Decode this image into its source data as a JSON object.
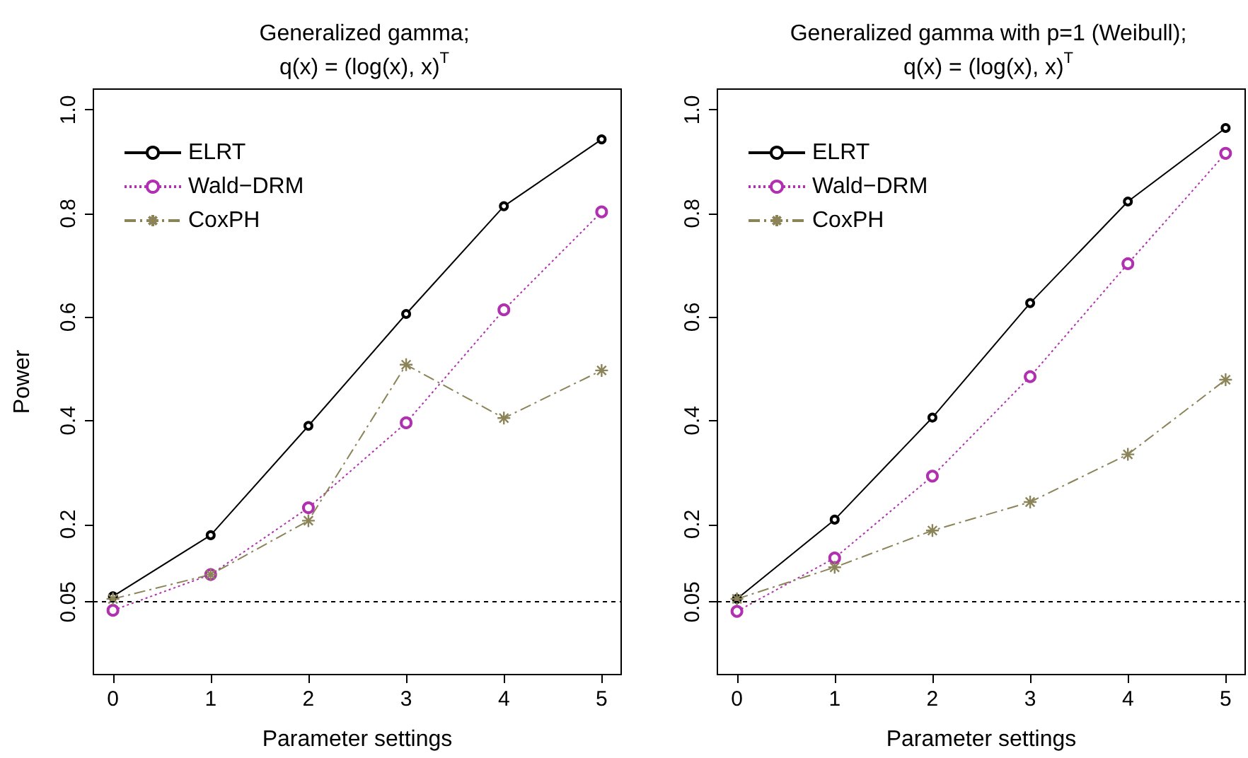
{
  "chart_data": [
    {
      "type": "line",
      "title": "Generalized gamma;",
      "subtitle": "q(x) = (log(x), x)$^{T}$",
      "xlabel": "Parameter settings",
      "ylabel": "Power",
      "x": [
        0,
        1,
        2,
        3,
        4,
        5
      ],
      "xlim": [
        -0.2,
        5.2
      ],
      "xticks": [
        0,
        1,
        2,
        3,
        4,
        5
      ],
      "ylim": [
        -0.09,
        1.04
      ],
      "yticks": [
        0.05,
        0.2,
        0.4,
        0.6,
        0.8,
        {
          "value": 1,
          "label": "1.0"
        }
      ],
      "grid": false,
      "legend": "top left",
      "ref_lines": [
        {
          "axis": "y",
          "value": 0.05,
          "label": null,
          "color": "#000000",
          "line_style": "dashed"
        }
      ],
      "series": [
        {
          "name": "ELRT",
          "color": "#000000",
          "marker": "circle",
          "line_style": "solid",
          "values": [
            0.061,
            0.179,
            0.39,
            0.606,
            0.814,
            0.943
          ]
        },
        {
          "name": "Wald−DRM",
          "color": "#b030b0",
          "marker": "circle",
          "line_style": "dotted",
          "values": [
            0.034,
            0.103,
            0.232,
            0.396,
            0.614,
            0.803
          ]
        },
        {
          "name": "CoxPH",
          "color": "#8b8458",
          "marker": "cross",
          "line_style": "dashed",
          "values": [
            0.056,
            0.103,
            0.207,
            0.508,
            0.405,
            0.497
          ]
        }
      ]
    },
    {
      "type": "line",
      "title": "Generalized gamma with p=1 (Weibull);",
      "subtitle": "q(x) = (log(x), x)$^{T}$",
      "xlabel": "Parameter settings",
      "x": [
        0,
        1,
        2,
        3,
        4,
        5
      ],
      "xlim": [
        -0.2,
        5.2
      ],
      "xticks": [
        0,
        1,
        2,
        3,
        4,
        5
      ],
      "ylim": [
        -0.09,
        1.04
      ],
      "yticks": [
        0.05,
        0.2,
        0.4,
        0.6,
        0.8,
        {
          "value": 1,
          "label": "1.0"
        }
      ],
      "grid": false,
      "legend": "top left",
      "ref_lines": [
        {
          "axis": "y",
          "value": 0.05,
          "label": null,
          "color": "#000000",
          "line_style": "dashed"
        }
      ],
      "series": [
        {
          "name": "ELRT",
          "color": "#000000",
          "marker": "circle",
          "line_style": "solid",
          "values": [
            0.056,
            0.209,
            0.406,
            0.627,
            0.823,
            0.965
          ]
        },
        {
          "name": "Wald−DRM",
          "color": "#b030b0",
          "marker": "circle",
          "line_style": "dotted",
          "values": [
            0.032,
            0.135,
            0.293,
            0.485,
            0.703,
            0.916
          ]
        },
        {
          "name": "CoxPH",
          "color": "#8b8458",
          "marker": "cross",
          "line_style": "dashed",
          "values": [
            0.056,
            0.117,
            0.188,
            0.243,
            0.335,
            0.479
          ]
        }
      ]
    }
  ]
}
